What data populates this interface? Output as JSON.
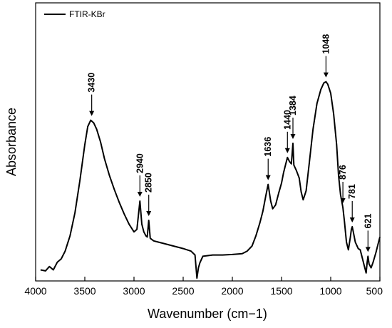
{
  "chart_data": {
    "type": "line",
    "title": "",
    "xlabel": "Wavenumber (cm−1)",
    "ylabel": "Absorbance",
    "xlim": [
      4000,
      500
    ],
    "ylim": [
      0,
      1
    ],
    "x_reversed": true,
    "y_ticks_shown": false,
    "grid": false,
    "legend_position": "top-left",
    "x_ticks": [
      4000,
      3500,
      3000,
      2500,
      2000,
      1500,
      1000,
      500
    ],
    "x_tick_labels": [
      "4000",
      "3500",
      "3000",
      "2500",
      "2000",
      "1500",
      "1000",
      "500"
    ],
    "series": [
      {
        "name": "FTIR-KBr",
        "color": "#000000",
        "points": [
          [
            3950,
            0.032
          ],
          [
            3900,
            0.028
          ],
          [
            3860,
            0.045
          ],
          [
            3820,
            0.032
          ],
          [
            3780,
            0.062
          ],
          [
            3740,
            0.075
          ],
          [
            3700,
            0.105
          ],
          [
            3650,
            0.165
          ],
          [
            3600,
            0.255
          ],
          [
            3550,
            0.38
          ],
          [
            3500,
            0.52
          ],
          [
            3470,
            0.59
          ],
          [
            3440,
            0.615
          ],
          [
            3410,
            0.605
          ],
          [
            3380,
            0.58
          ],
          [
            3340,
            0.53
          ],
          [
            3300,
            0.465
          ],
          [
            3250,
            0.4
          ],
          [
            3200,
            0.345
          ],
          [
            3150,
            0.295
          ],
          [
            3100,
            0.25
          ],
          [
            3050,
            0.21
          ],
          [
            3000,
            0.18
          ],
          [
            2970,
            0.19
          ],
          [
            2940,
            0.3
          ],
          [
            2920,
            0.21
          ],
          [
            2900,
            0.18
          ],
          [
            2880,
            0.165
          ],
          [
            2865,
            0.16
          ],
          [
            2850,
            0.225
          ],
          [
            2835,
            0.155
          ],
          [
            2800,
            0.145
          ],
          [
            2750,
            0.14
          ],
          [
            2700,
            0.135
          ],
          [
            2600,
            0.125
          ],
          [
            2500,
            0.115
          ],
          [
            2420,
            0.105
          ],
          [
            2380,
            0.09
          ],
          [
            2360,
            0.0
          ],
          [
            2345,
            0.04
          ],
          [
            2330,
            0.06
          ],
          [
            2300,
            0.085
          ],
          [
            2200,
            0.09
          ],
          [
            2100,
            0.09
          ],
          [
            2000,
            0.092
          ],
          [
            1900,
            0.095
          ],
          [
            1850,
            0.105
          ],
          [
            1800,
            0.125
          ],
          [
            1760,
            0.165
          ],
          [
            1720,
            0.215
          ],
          [
            1690,
            0.26
          ],
          [
            1660,
            0.32
          ],
          [
            1636,
            0.365
          ],
          [
            1610,
            0.3
          ],
          [
            1590,
            0.27
          ],
          [
            1560,
            0.285
          ],
          [
            1530,
            0.33
          ],
          [
            1500,
            0.37
          ],
          [
            1480,
            0.41
          ],
          [
            1460,
            0.44
          ],
          [
            1440,
            0.47
          ],
          [
            1420,
            0.455
          ],
          [
            1400,
            0.445
          ],
          [
            1384,
            0.525
          ],
          [
            1375,
            0.44
          ],
          [
            1350,
            0.42
          ],
          [
            1320,
            0.39
          ],
          [
            1300,
            0.335
          ],
          [
            1280,
            0.305
          ],
          [
            1250,
            0.34
          ],
          [
            1220,
            0.44
          ],
          [
            1180,
            0.58
          ],
          [
            1140,
            0.68
          ],
          [
            1100,
            0.735
          ],
          [
            1070,
            0.76
          ],
          [
            1048,
            0.765
          ],
          [
            1030,
            0.755
          ],
          [
            1000,
            0.72
          ],
          [
            970,
            0.64
          ],
          [
            940,
            0.52
          ],
          [
            920,
            0.4
          ],
          [
            900,
            0.325
          ],
          [
            876,
            0.275
          ],
          [
            860,
            0.22
          ],
          [
            840,
            0.14
          ],
          [
            820,
            0.11
          ],
          [
            800,
            0.16
          ],
          [
            790,
            0.19
          ],
          [
            781,
            0.2
          ],
          [
            770,
            0.18
          ],
          [
            750,
            0.14
          ],
          [
            720,
            0.115
          ],
          [
            700,
            0.11
          ],
          [
            680,
            0.08
          ],
          [
            660,
            0.05
          ],
          [
            640,
            0.02
          ],
          [
            630,
            0.06
          ],
          [
            621,
            0.085
          ],
          [
            610,
            0.055
          ],
          [
            590,
            0.04
          ],
          [
            570,
            0.06
          ],
          [
            540,
            0.1
          ],
          [
            520,
            0.13
          ],
          [
            500,
            0.16
          ]
        ]
      }
    ],
    "annotations": [
      {
        "label": "3430",
        "x": 3430,
        "y": 0.615
      },
      {
        "label": "2940",
        "x": 2940,
        "y": 0.3
      },
      {
        "label": "2850",
        "x": 2850,
        "y": 0.225
      },
      {
        "label": "1636",
        "x": 1636,
        "y": 0.365
      },
      {
        "label": "1440",
        "x": 1440,
        "y": 0.47
      },
      {
        "label": "1384",
        "x": 1384,
        "y": 0.525
      },
      {
        "label": "1048",
        "x": 1048,
        "y": 0.765
      },
      {
        "label": "876",
        "x": 876,
        "y": 0.275
      },
      {
        "label": "781",
        "x": 781,
        "y": 0.2
      },
      {
        "label": "621",
        "x": 621,
        "y": 0.085
      }
    ]
  }
}
